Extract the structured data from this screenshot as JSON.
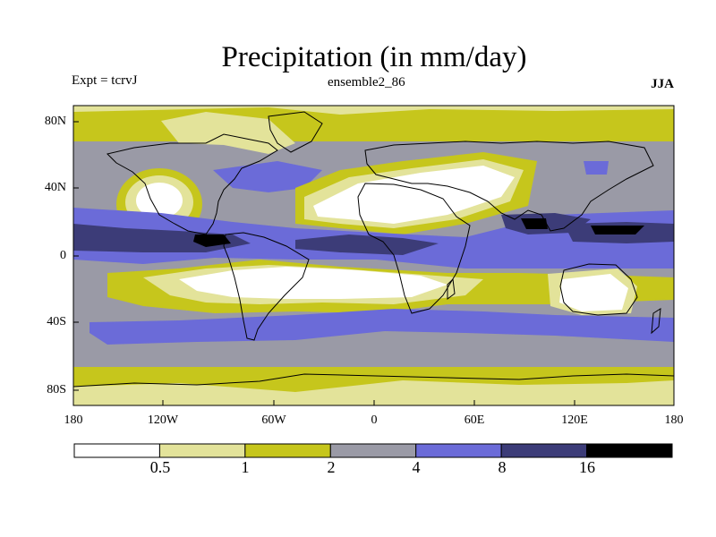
{
  "title": "Precipitation (in mm/day)",
  "subtitle_left": "Expt = tcrvJ",
  "subtitle_center": "ensemble2_86",
  "subtitle_right": "JJA",
  "lat_labels": [
    "80N",
    "40N",
    "0",
    "40S",
    "80S"
  ],
  "lon_labels": [
    "180",
    "120W",
    "60W",
    "0",
    "60E",
    "120E",
    "180"
  ],
  "colorbar": {
    "levels": [
      "0.5",
      "1",
      "2",
      "4",
      "8",
      "16"
    ],
    "colors": [
      "#ffffff",
      "#e3e39a",
      "#c6c61c",
      "#9a9aa6",
      "#6b6bd8",
      "#3c3c78",
      "#000000"
    ]
  }
}
